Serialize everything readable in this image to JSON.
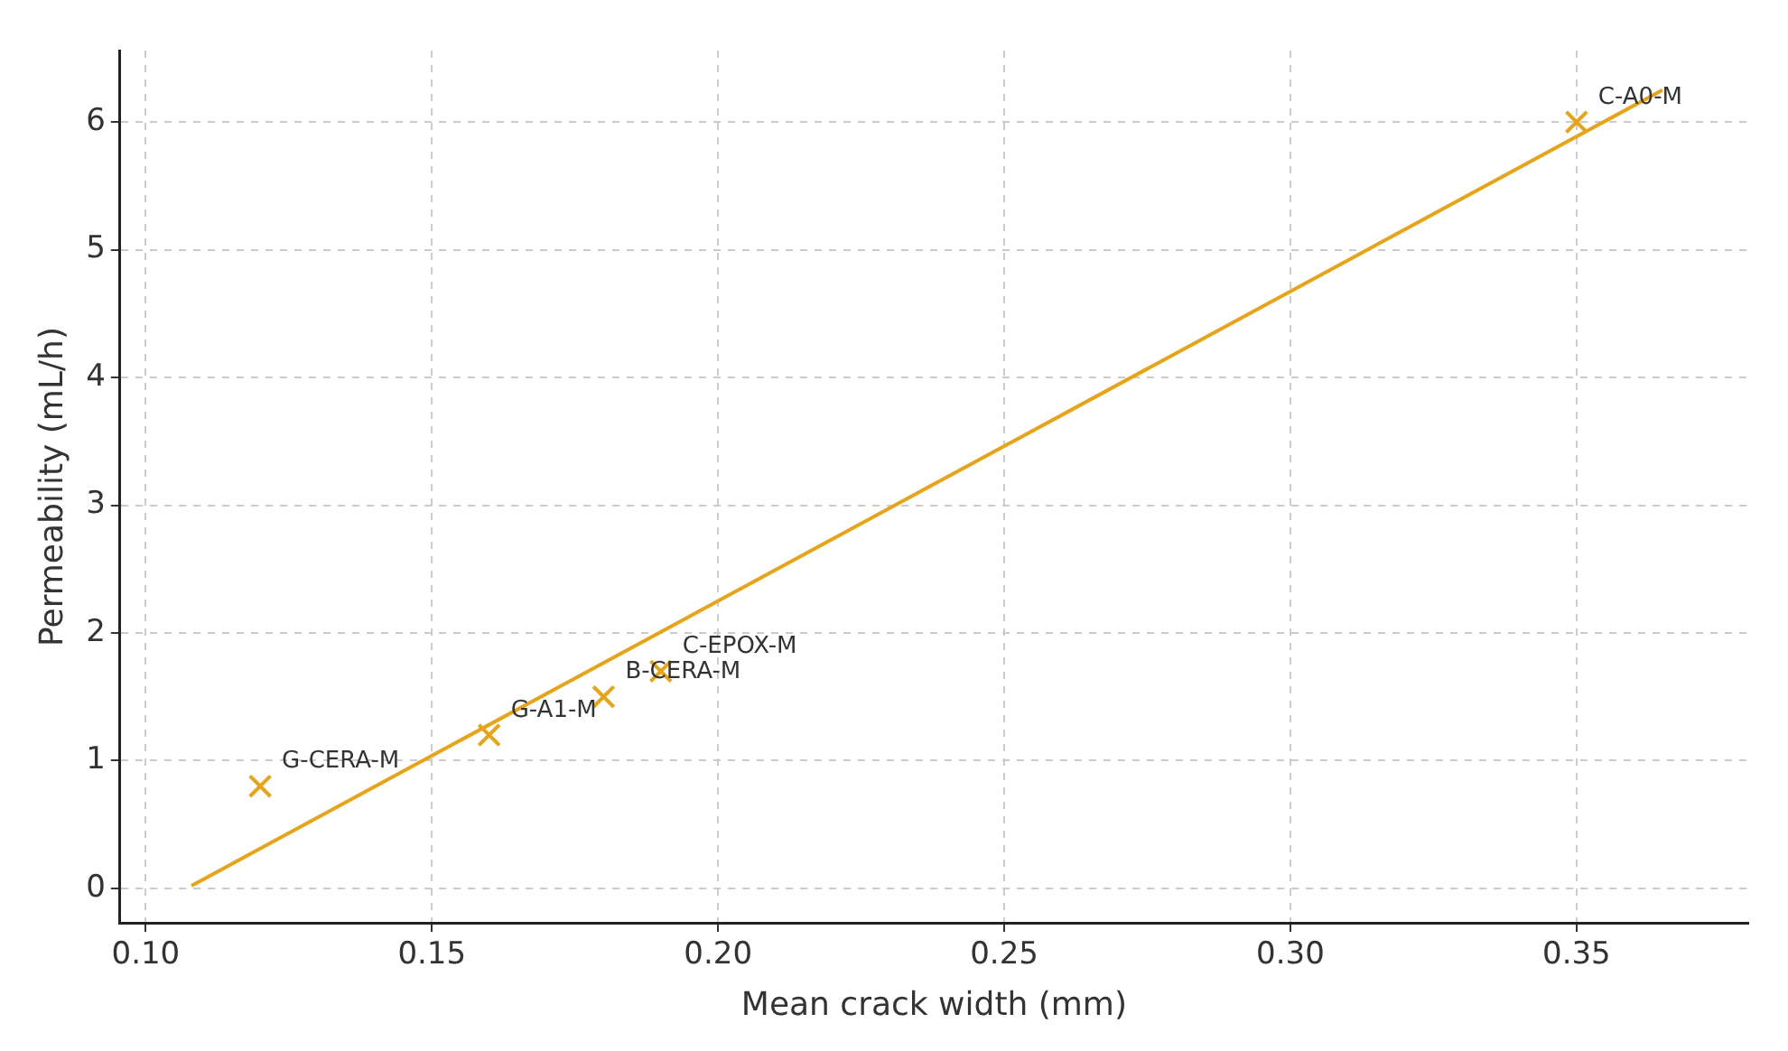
{
  "chart_data": {
    "type": "scatter",
    "xlabel": "Mean crack width (mm)",
    "ylabel": "Permeability (mL/h)",
    "xlim": [
      0.0955,
      0.38
    ],
    "xticks": [
      {
        "value": 0.1,
        "label": "0.10"
      },
      {
        "value": 0.15,
        "label": "0.15"
      },
      {
        "value": 0.2,
        "label": "0.20"
      },
      {
        "value": 0.25,
        "label": "0.25"
      },
      {
        "value": 0.3,
        "label": "0.30"
      },
      {
        "value": 0.35,
        "label": "0.35"
      }
    ],
    "ylim": [
      -0.27,
      6.56
    ],
    "yticks": [
      0,
      1,
      2,
      3,
      4,
      5,
      6
    ],
    "grid": true,
    "legend": false,
    "series": [
      {
        "type": "scatter",
        "color": "#e8a317",
        "marker": "cross",
        "x": [
          0.12,
          0.16,
          0.18,
          0.19,
          0.35
        ],
        "values": [
          0.8,
          1.2,
          1.5,
          1.7,
          6.0
        ]
      },
      {
        "type": "line",
        "color": "#e8a317",
        "marker": "none",
        "line_style": "solid",
        "x": [
          0.108,
          0.365
        ],
        "values": [
          0.02,
          6.25
        ]
      }
    ],
    "annotations": [
      {
        "text": "G-CERA-M",
        "x": 0.12,
        "y": 0.8
      },
      {
        "text": "G-A1-M",
        "x": 0.16,
        "y": 1.2
      },
      {
        "text": "B-CERA-M",
        "x": 0.18,
        "y": 1.5
      },
      {
        "text": "C-EPOX-M",
        "x": 0.19,
        "y": 1.7
      },
      {
        "text": "C-A0-M",
        "x": 0.35,
        "y": 6.0
      }
    ]
  }
}
